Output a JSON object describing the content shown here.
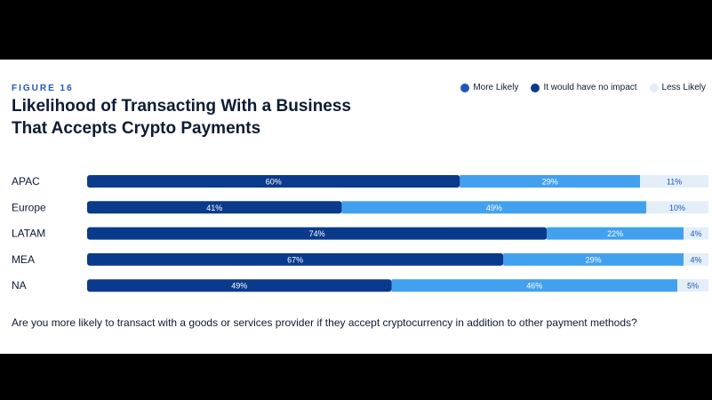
{
  "figure_label": "FIGURE 16",
  "title": "Likelihood of Transacting With a Business That Accepts Crypto Payments",
  "question": "Are you more likely to transact with a goods or services provider if they accept cryptocurrency in addition to other payment methods?",
  "legend": [
    {
      "label": "More Likely",
      "color": "#1f57b8"
    },
    {
      "label": "It would have no impact",
      "color": "#0a3a8c"
    },
    {
      "label": "Less Likely",
      "color": "#e3eef9"
    }
  ],
  "chart_data": {
    "type": "bar",
    "orientation": "horizontal",
    "stacked": true,
    "categories": [
      "APAC",
      "Europe",
      "LATAM",
      "MEA",
      "NA"
    ],
    "series": [
      {
        "name": "More Likely",
        "values": [
          60,
          41,
          74,
          67,
          49
        ],
        "color": "#0a3a8c",
        "labels": [
          "60%",
          "41%",
          "74%",
          "67%",
          "49%"
        ]
      },
      {
        "name": "It would have no impact",
        "values": [
          29,
          49,
          22,
          29,
          46
        ],
        "color": "#42a1ee",
        "labels": [
          "29%",
          "49%",
          "22%",
          "29%",
          "46%"
        ]
      },
      {
        "name": "Less Likely",
        "values": [
          11,
          10,
          4,
          4,
          5
        ],
        "color": "#e3eef9",
        "labels": [
          "11%",
          "10%",
          "4%",
          "4%",
          "5%"
        ]
      }
    ],
    "xlim": [
      0,
      100
    ],
    "grid": false,
    "legend_position": "top-right"
  }
}
